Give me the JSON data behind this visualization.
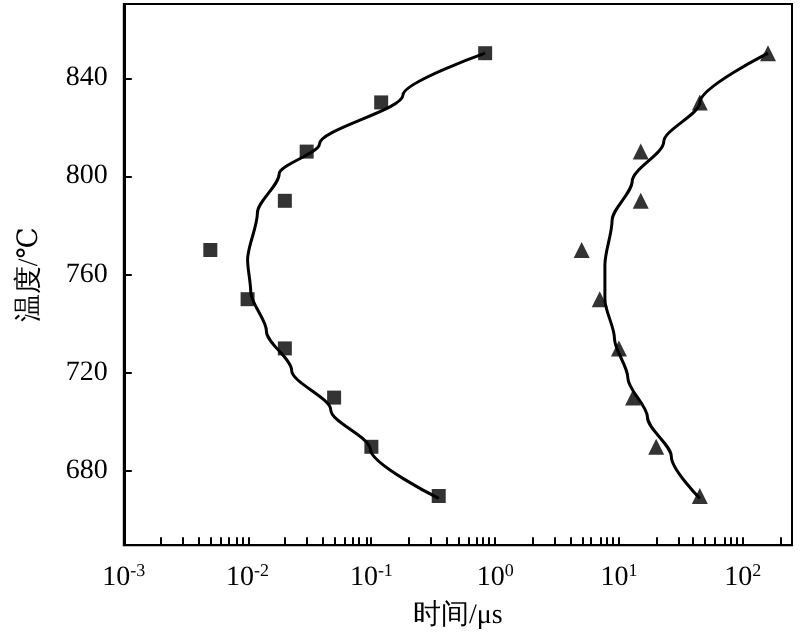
{
  "chart_data": {
    "type": "scatter",
    "xlabel": "时间/μs",
    "ylabel": "温度/℃",
    "log": "x",
    "xlim": [
      0.001,
      250
    ],
    "xticks": [
      {
        "value": 0.001,
        "label": "10$^{-3}$"
      },
      {
        "value": 0.002,
        "label": null
      },
      {
        "value": 0.003,
        "label": null
      },
      {
        "value": 0.004,
        "label": null
      },
      {
        "value": 0.005,
        "label": null
      },
      {
        "value": 0.006,
        "label": null
      },
      {
        "value": 0.007,
        "label": null
      },
      {
        "value": 0.008,
        "label": null
      },
      {
        "value": 0.009,
        "label": null
      },
      {
        "value": 0.01,
        "label": "10$^{-2}$"
      },
      {
        "value": 0.02,
        "label": null
      },
      {
        "value": 0.03,
        "label": null
      },
      {
        "value": 0.04,
        "label": null
      },
      {
        "value": 0.05,
        "label": null
      },
      {
        "value": 0.06,
        "label": null
      },
      {
        "value": 0.07,
        "label": null
      },
      {
        "value": 0.08,
        "label": null
      },
      {
        "value": 0.09,
        "label": null
      },
      {
        "value": 0.1,
        "label": "10$^{-1}$"
      },
      {
        "value": 0.2,
        "label": null
      },
      {
        "value": 0.3,
        "label": null
      },
      {
        "value": 0.4,
        "label": null
      },
      {
        "value": 0.5,
        "label": null
      },
      {
        "value": 0.6,
        "label": null
      },
      {
        "value": 0.7,
        "label": null
      },
      {
        "value": 0.8,
        "label": null
      },
      {
        "value": 0.9,
        "label": null
      },
      {
        "value": 1,
        "label": "10$^{0}$"
      },
      {
        "value": 2,
        "label": null
      },
      {
        "value": 3,
        "label": null
      },
      {
        "value": 4,
        "label": null
      },
      {
        "value": 5,
        "label": null
      },
      {
        "value": 6,
        "label": null
      },
      {
        "value": 7,
        "label": null
      },
      {
        "value": 8,
        "label": null
      },
      {
        "value": 9,
        "label": null
      },
      {
        "value": 10,
        "label": "10$^{1}$"
      },
      {
        "value": 20,
        "label": null
      },
      {
        "value": 30,
        "label": null
      },
      {
        "value": 40,
        "label": null
      },
      {
        "value": 50,
        "label": null
      },
      {
        "value": 60,
        "label": null
      },
      {
        "value": 70,
        "label": null
      },
      {
        "value": 80,
        "label": null
      },
      {
        "value": 90,
        "label": null
      },
      {
        "value": 100,
        "label": "10$^{2}$"
      },
      {
        "value": 200,
        "label": null
      }
    ],
    "ylim": [
      650,
      870
    ],
    "yticks": [
      680,
      720,
      760,
      800,
      840
    ],
    "series": [
      {
        "type": "scatter",
        "marker": "square",
        "color": "#000000",
        "x": [
          0.83,
          0.12,
          0.03,
          0.02,
          0.005,
          0.01,
          0.02,
          0.05,
          0.1,
          0.35
        ],
        "values": [
          850,
          830,
          810,
          790,
          770,
          750,
          730,
          710,
          690,
          670
        ]
      },
      {
        "type": "line",
        "marker": "none",
        "line_style": "solid",
        "color": "#000000",
        "x": [
          0.83,
          0.18,
          0.038,
          0.018,
          0.012,
          0.01,
          0.0106,
          0.0142,
          0.0227,
          0.047,
          0.098,
          0.35
        ],
        "values": [
          850,
          833,
          813,
          801,
          785,
          766,
          753,
          737,
          721,
          705,
          689,
          669
        ]
      },
      {
        "type": "scatter",
        "marker": "triangle",
        "color": "#000000",
        "x": [
          160,
          45,
          15,
          15,
          5,
          7,
          10,
          13,
          20,
          45
        ],
        "values": [
          850,
          830,
          810,
          790,
          770,
          750,
          730,
          710,
          690,
          670
        ]
      },
      {
        "type": "line",
        "marker": "none",
        "line_style": "solid",
        "color": "#000000",
        "x": [
          160,
          45,
          23,
          12.8,
          8.8,
          7.7,
          7.7,
          9.2,
          11.8,
          17,
          26.5,
          45
        ],
        "values": [
          850,
          830,
          814,
          798,
          782,
          764,
          750,
          734,
          718,
          702,
          686,
          669
        ]
      }
    ]
  }
}
